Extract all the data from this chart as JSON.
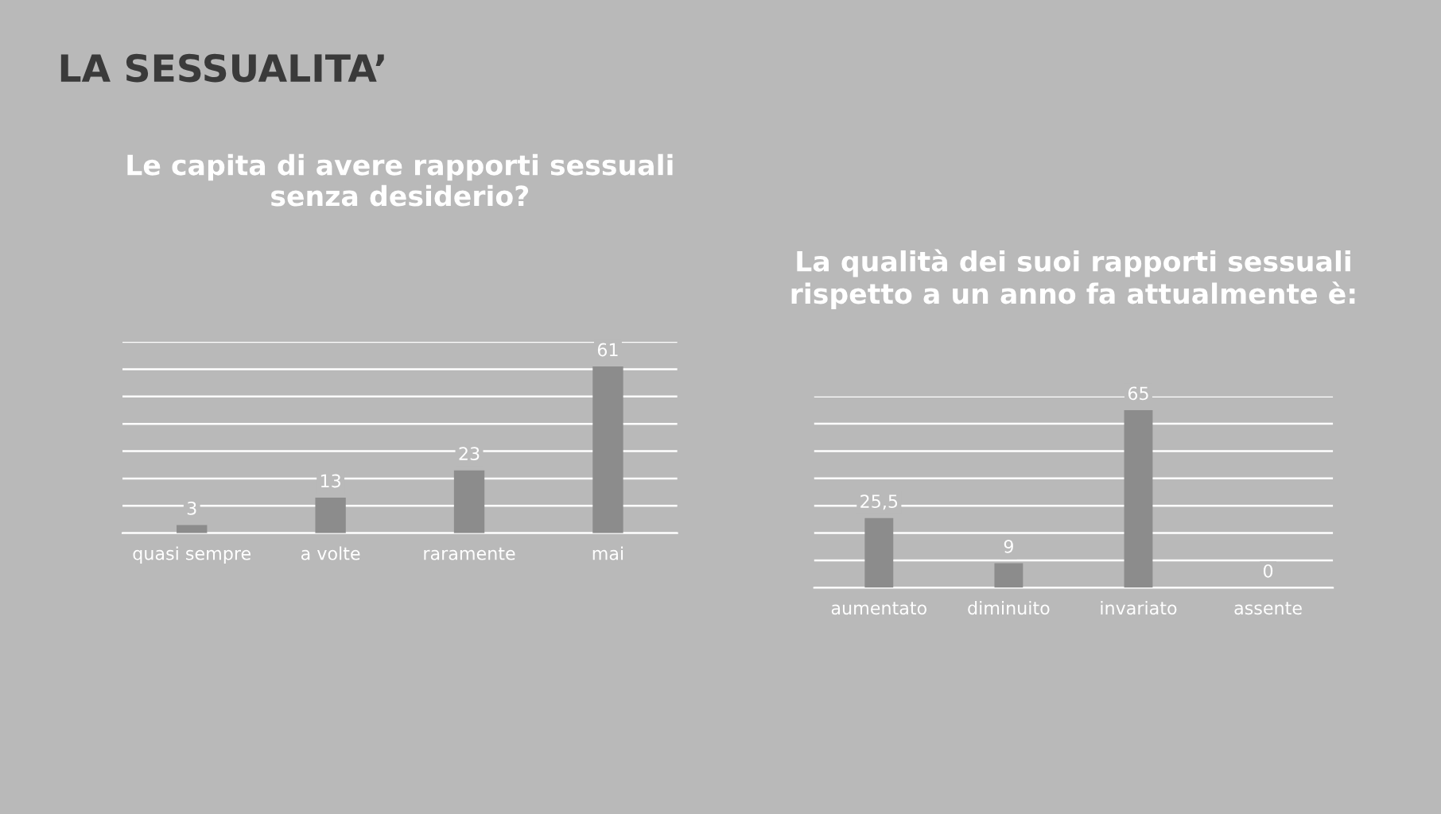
{
  "chart_data": [
    {
      "type": "bar",
      "title": "Le capita di avere rapporti sessuali\nsenza desiderio?",
      "annotations": [
        "LA SESSUALITA’"
      ],
      "categories": [
        "quasi sempre",
        "a volte",
        "raramente",
        "mai"
      ],
      "values": [
        3,
        13,
        23,
        61
      ],
      "value_labels": [
        "3",
        "13",
        "23",
        "61"
      ],
      "color": "#8c8c8c",
      "ylim": [
        0,
        70
      ],
      "yticks": [
        {
          "value": 0,
          "label": null
        },
        {
          "value": 10,
          "label": null
        },
        {
          "value": 20,
          "label": null
        },
        {
          "value": 30,
          "label": null
        },
        {
          "value": 40,
          "label": null
        },
        {
          "value": 50,
          "label": null
        },
        {
          "value": 60,
          "label": null
        },
        {
          "value": 70,
          "label": null
        }
      ],
      "tick_labels": "x",
      "grid": "y"
    },
    {
      "type": "bar",
      "title": "La qualità dei suoi rapporti sessuali\nrispetto a un anno fa attualmente è:",
      "categories": [
        "aumentato",
        "diminuito",
        "invariato",
        "assente"
      ],
      "values": [
        25.5,
        9,
        65,
        0
      ],
      "value_labels": [
        "25,5",
        "9",
        "65",
        "0"
      ],
      "color": "#8c8c8c",
      "ylim": [
        0,
        70
      ],
      "yticks": [
        {
          "value": 0,
          "label": null
        },
        {
          "value": 10,
          "label": null
        },
        {
          "value": 20,
          "label": null
        },
        {
          "value": 30,
          "label": null
        },
        {
          "value": 40,
          "label": null
        },
        {
          "value": 50,
          "label": null
        },
        {
          "value": 60,
          "label": null
        },
        {
          "value": 70,
          "label": null
        }
      ],
      "tick_labels": "x",
      "grid": "y"
    }
  ]
}
